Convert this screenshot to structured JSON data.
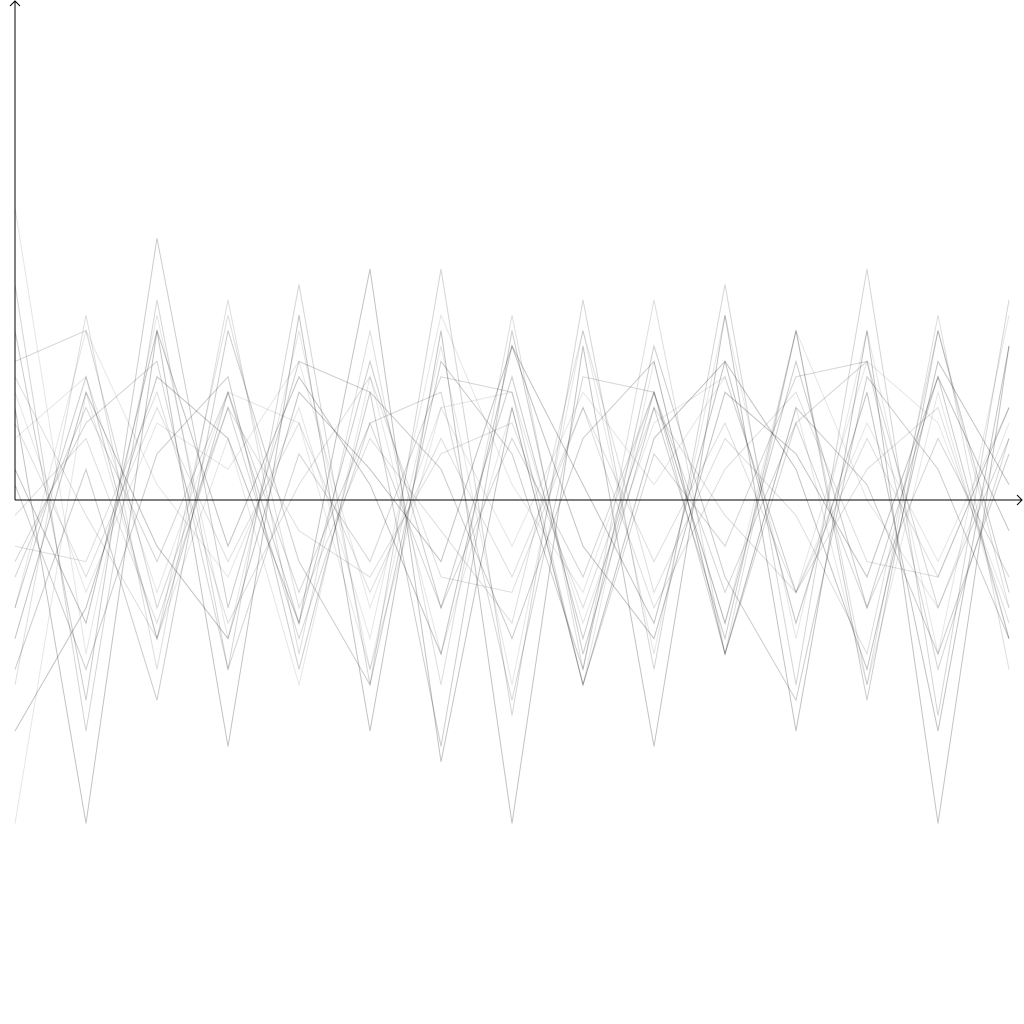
{
  "colors": {
    "background": "#ffffff",
    "axis": "#000000",
    "series_stroke": "#000000"
  },
  "chart_data": {
    "type": "line",
    "title": "",
    "xlabel": "",
    "ylabel": "",
    "grid": false,
    "legend": "none",
    "axis_style": "arrows, no ticks, no tick labels",
    "x": [
      0,
      1,
      2,
      3,
      4,
      5,
      6,
      7,
      8,
      9,
      10,
      11,
      12,
      13,
      14
    ],
    "xlim": [
      0,
      14.1
    ],
    "ylim": [
      -1.3,
      1.3
    ],
    "series": [
      {
        "values": [
          0.95,
          -0.5,
          0.6,
          -0.45,
          0.55,
          -0.55,
          0.5,
          -0.6,
          0.55,
          -0.5,
          0.6,
          -0.45,
          0.55,
          -0.5,
          0.6
        ]
      },
      {
        "values": [
          -0.6,
          0.6,
          -0.55,
          0.65,
          -0.5,
          0.55,
          -0.6,
          0.6,
          -0.55,
          0.65,
          -0.5,
          0.55,
          -0.6,
          0.6,
          -0.55
        ]
      },
      {
        "values": [
          0.7,
          -0.75,
          0.65,
          -0.55,
          0.7,
          -0.6,
          0.75,
          -0.7,
          0.65,
          -0.55,
          0.7,
          -0.6,
          0.75,
          -0.7,
          0.65
        ]
      },
      {
        "values": [
          -0.35,
          0.4,
          -0.45,
          0.35,
          -0.4,
          0.45,
          -0.35,
          0.4,
          -0.45,
          0.35,
          -0.4,
          0.45,
          -0.35,
          0.4,
          -0.45
        ]
      },
      {
        "values": [
          0.3,
          -1.05,
          0.55,
          -0.8,
          0.6,
          -0.75,
          0.55,
          -1.05,
          0.5,
          -0.8,
          0.6,
          -0.75,
          0.55,
          -1.05,
          0.5
        ]
      },
      {
        "values": [
          -1.05,
          0.35,
          -0.45,
          0.2,
          -0.6,
          0.4,
          -0.5,
          0.3,
          -0.6,
          0.45,
          -0.5,
          0.3,
          -0.6,
          0.35,
          -0.45
        ]
      },
      {
        "values": [
          0.25,
          -0.25,
          0.3,
          -0.2,
          0.25,
          -0.3,
          0.2,
          -0.25,
          0.3,
          -0.2,
          0.25,
          -0.3,
          0.2,
          -0.25,
          0.3
        ]
      },
      {
        "values": [
          -0.25,
          0.3,
          -0.2,
          0.35,
          -0.3,
          0.25,
          -0.35,
          0.2,
          -0.25,
          0.35,
          -0.3,
          0.25,
          -0.35,
          0.2,
          -0.25
        ]
      },
      {
        "values": [
          0.55,
          -0.65,
          0.85,
          -0.35,
          0.45,
          0.35,
          -0.8,
          0.55,
          -0.5,
          0.3,
          -0.45,
          0.55,
          -0.65,
          0.55,
          -0.3
        ]
      },
      {
        "values": [
          -0.75,
          -0.35,
          0.4,
          0.2,
          -0.4,
          0.75,
          -0.85,
          0.3,
          -0.6,
          0.2,
          0.45,
          -0.4,
          0.35,
          -0.75,
          0.5
        ]
      },
      {
        "values": [
          0.2,
          0.4,
          -0.3,
          0.35,
          0.25,
          -0.55,
          0.3,
          0.35,
          -0.4,
          0.25,
          0.4,
          -0.3,
          0.45,
          0.25,
          -0.35
        ]
      },
      {
        "values": [
          -0.15,
          -0.2,
          0.35,
          -0.4,
          0.05,
          0.4,
          -0.25,
          -0.3,
          0.3,
          -0.35,
          0.1,
          0.35,
          -0.2,
          -0.25,
          0.3
        ]
      },
      {
        "values": [
          0.45,
          0.55,
          -0.35,
          0.3,
          -0.45,
          0.25,
          0.35,
          -0.65,
          0.4,
          0.35,
          -0.5,
          0.25,
          0.45,
          -0.35,
          0.2
        ]
      },
      {
        "values": [
          -0.55,
          0.1,
          -0.65,
          0.55,
          -0.2,
          -0.6,
          0.45,
          0.15,
          -0.55,
          0.5,
          -0.25,
          -0.65,
          0.4,
          0.1,
          -0.45
        ]
      },
      {
        "values": [
          0.1,
          -0.4,
          0.55,
          -0.15,
          0.4,
          0.05,
          -0.5,
          0.5,
          0.05,
          -0.4,
          0.45,
          0.1,
          -0.55,
          0.45,
          0.05
        ]
      },
      {
        "values": [
          -0.35,
          0.55,
          0.05,
          -0.25,
          0.3,
          -0.45,
          0.6,
          0.05,
          -0.3,
          0.35,
          -0.4,
          0.55,
          0.0,
          -0.35,
          0.25
        ]
      },
      {
        "values": [
          0.4,
          -0.05,
          -0.45,
          0.6,
          -0.35,
          0.2,
          -0.1,
          -0.4,
          0.55,
          -0.3,
          0.2,
          -0.05,
          -0.5,
          0.55,
          -0.35
        ]
      },
      {
        "values": [
          -0.2,
          0.25,
          0.45,
          -0.55,
          0.15,
          -0.2,
          0.4,
          0.35,
          -0.6,
          0.15,
          -0.15,
          0.4,
          0.45,
          -0.55,
          0.2
        ]
      },
      {
        "values": [
          0.05,
          -0.55,
          0.15,
          0.4,
          -0.55,
          0.35,
          0.1,
          -0.45,
          0.2,
          0.45,
          -0.5,
          0.3,
          0.05,
          -0.5,
          0.15
        ]
      },
      {
        "values": [
          -0.45,
          0.35,
          -0.15,
          -0.45,
          0.35,
          0.1,
          -0.2,
          0.5,
          -0.15,
          -0.45,
          0.35,
          0.15,
          -0.25,
          0.4,
          -0.1
        ]
      },
      {
        "values": [
          0.35,
          -0.3,
          0.25,
          0.1,
          0.45,
          -0.35,
          0.3,
          -0.15,
          0.35,
          0.05,
          0.4,
          -0.3,
          0.25,
          -0.2,
          0.3
        ]
      },
      {
        "values": [
          -0.05,
          0.2,
          -0.4,
          0.3,
          -0.1,
          -0.25,
          0.15,
          0.25,
          -0.35,
          0.3,
          -0.05,
          -0.3,
          0.1,
          0.3,
          -0.4
        ]
      }
    ]
  }
}
